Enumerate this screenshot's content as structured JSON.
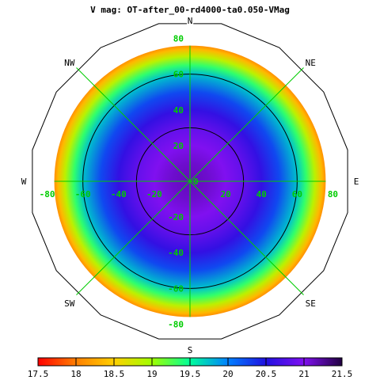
{
  "chart_data": {
    "type": "heatmap",
    "title": "V mag: OT-after_00-rd4000-ta0.050-VMag",
    "projection": "polar-sky",
    "compass": [
      "N",
      "NE",
      "E",
      "SE",
      "S",
      "SW",
      "W",
      "NW"
    ],
    "axis_ticks": [
      "80",
      "60",
      "40",
      "20",
      "0",
      "-20",
      "-40",
      "-60",
      "-80"
    ],
    "x_tick_values": [
      -80,
      -60,
      -40,
      -20,
      0,
      20,
      40,
      60,
      80
    ],
    "y_tick_values": [
      80,
      60,
      40,
      20,
      0,
      -20,
      -40,
      -60,
      -80
    ],
    "radius_max": 90,
    "data_radius_max": 76,
    "contour_levels_angle": [
      30,
      60
    ],
    "colorbar": {
      "labels": [
        "17.5",
        "18",
        "18.5",
        "19",
        "19.5",
        "20",
        "20.5",
        "21",
        "21.5"
      ],
      "min": 17.5,
      "max": 21.5
    },
    "radial_profile": [
      {
        "r": 0,
        "vmag": 21.15
      },
      {
        "r": 10,
        "vmag": 21.1
      },
      {
        "r": 20,
        "vmag": 21.0
      },
      {
        "r": 30,
        "vmag": 20.85
      },
      {
        "r": 40,
        "vmag": 20.6
      },
      {
        "r": 50,
        "vmag": 20.25
      },
      {
        "r": 60,
        "vmag": 19.75
      },
      {
        "r": 65,
        "vmag": 19.35
      },
      {
        "r": 70,
        "vmag": 18.85
      },
      {
        "r": 74,
        "vmag": 18.35
      },
      {
        "r": 76,
        "vmag": 18.1
      }
    ],
    "grid_color": "#00cc00",
    "outline_color": "#000000"
  }
}
